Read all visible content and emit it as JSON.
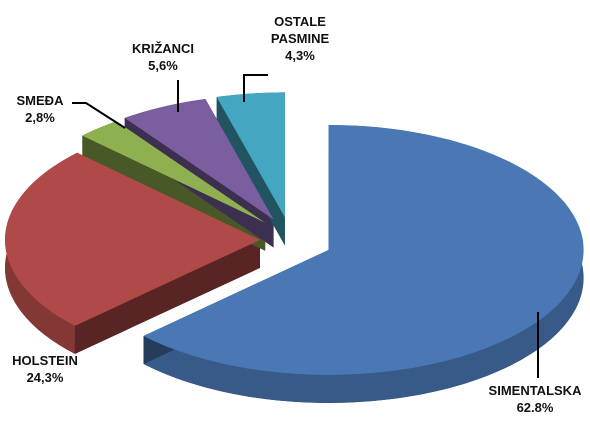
{
  "chart_data": {
    "type": "pie",
    "categories": [
      "SIMENTALSKA",
      "HOLSTEIN",
      "SMEĐA",
      "KRIŽANCI",
      "OSTALE PASMINE"
    ],
    "values": [
      62.8,
      24.3,
      2.8,
      5.6,
      4.3
    ],
    "value_labels": [
      "62.8%",
      "24,3%",
      "2,8%",
      "5,6%",
      "4,3%"
    ],
    "colors": [
      "#4a78b5",
      "#b04a48",
      "#8fb04e",
      "#7a5ea0",
      "#44a6c0"
    ]
  }
}
